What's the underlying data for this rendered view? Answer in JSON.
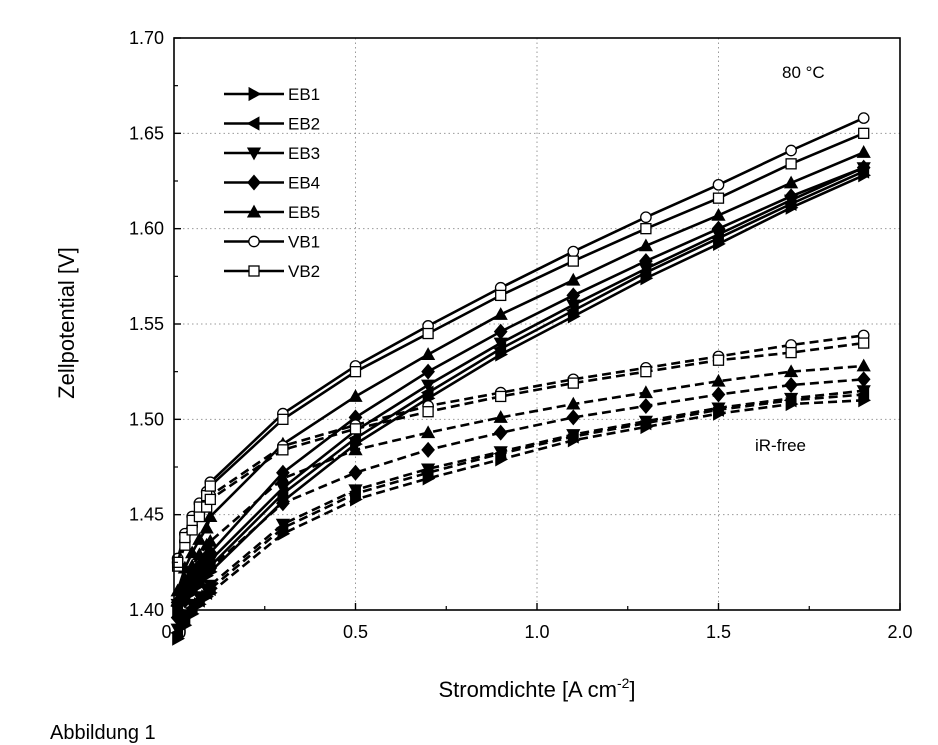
{
  "chart_data": {
    "type": "line",
    "xlabel": "Stromdichte [A cm",
    "xlabel_sup": "-2",
    "xlabel_tail": "]",
    "ylabel": "Zellpotential [V]",
    "xlim": [
      0,
      2.0
    ],
    "ylim": [
      1.4,
      1.7
    ],
    "xticks": [
      0,
      0.5,
      1.0,
      1.5,
      2.0
    ],
    "xtick_labels": [
      "0.0",
      "0.5",
      "1.0",
      "1.5",
      "2.0"
    ],
    "yticks": [
      1.4,
      1.45,
      1.5,
      1.55,
      1.6,
      1.65,
      1.7
    ],
    "ytick_labels": [
      "1.40",
      "1.45",
      "1.50",
      "1.55",
      "1.60",
      "1.65",
      "1.70"
    ],
    "grid": true,
    "legend_position": "top-left",
    "annotations": [
      "80 °C",
      "iR-free"
    ],
    "x": [
      0.01,
      0.03,
      0.05,
      0.07,
      0.09,
      0.1,
      0.3,
      0.5,
      0.7,
      0.9,
      1.1,
      1.3,
      1.5,
      1.7,
      1.9
    ],
    "series": [
      {
        "name": "EB1",
        "marker": "triangle-right",
        "filled": true,
        "values": [
          1.4,
          1.405,
          1.409,
          1.413,
          1.418,
          1.42,
          1.457,
          1.487,
          1.511,
          1.534,
          1.554,
          1.574,
          1.592,
          1.611,
          1.628
        ],
        "ir_free": [
          1.385,
          1.392,
          1.398,
          1.403,
          1.407,
          1.409,
          1.44,
          1.458,
          1.469,
          1.479,
          1.489,
          1.496,
          1.503,
          1.508,
          1.51
        ]
      },
      {
        "name": "EB2",
        "marker": "triangle-left",
        "filled": true,
        "values": [
          1.402,
          1.407,
          1.411,
          1.416,
          1.421,
          1.423,
          1.461,
          1.49,
          1.514,
          1.537,
          1.557,
          1.577,
          1.595,
          1.613,
          1.63
        ],
        "ir_free": [
          1.388,
          1.395,
          1.401,
          1.405,
          1.409,
          1.411,
          1.443,
          1.461,
          1.472,
          1.482,
          1.491,
          1.498,
          1.505,
          1.51,
          1.513
        ]
      },
      {
        "name": "EB3",
        "marker": "triangle-down",
        "filled": true,
        "values": [
          1.403,
          1.409,
          1.414,
          1.419,
          1.424,
          1.426,
          1.464,
          1.494,
          1.518,
          1.54,
          1.56,
          1.579,
          1.597,
          1.615,
          1.632
        ],
        "ir_free": [
          1.39,
          1.397,
          1.403,
          1.407,
          1.411,
          1.413,
          1.445,
          1.463,
          1.474,
          1.483,
          1.492,
          1.499,
          1.506,
          1.511,
          1.515
        ]
      },
      {
        "name": "EB4",
        "marker": "diamond",
        "filled": true,
        "values": [
          1.404,
          1.412,
          1.418,
          1.423,
          1.428,
          1.43,
          1.472,
          1.501,
          1.525,
          1.546,
          1.565,
          1.583,
          1.6,
          1.617,
          1.632
        ],
        "ir_free": [
          1.396,
          1.405,
          1.411,
          1.416,
          1.42,
          1.422,
          1.456,
          1.472,
          1.484,
          1.493,
          1.501,
          1.507,
          1.513,
          1.518,
          1.521
        ]
      },
      {
        "name": "EB5",
        "marker": "triangle-up",
        "filled": true,
        "values": [
          1.41,
          1.422,
          1.43,
          1.437,
          1.443,
          1.449,
          1.487,
          1.512,
          1.534,
          1.555,
          1.573,
          1.591,
          1.607,
          1.624,
          1.64
        ],
        "ir_free": [
          1.405,
          1.416,
          1.423,
          1.429,
          1.434,
          1.436,
          1.469,
          1.484,
          1.493,
          1.501,
          1.508,
          1.514,
          1.52,
          1.525,
          1.528
        ]
      },
      {
        "name": "VB1",
        "marker": "circle",
        "filled": false,
        "values": [
          1.427,
          1.44,
          1.449,
          1.456,
          1.462,
          1.467,
          1.503,
          1.528,
          1.549,
          1.569,
          1.588,
          1.606,
          1.623,
          1.641,
          1.658
        ],
        "ir_free": [
          1.425,
          1.436,
          1.444,
          1.451,
          1.456,
          1.46,
          1.486,
          1.497,
          1.507,
          1.514,
          1.521,
          1.527,
          1.533,
          1.539,
          1.544
        ]
      },
      {
        "name": "VB2",
        "marker": "square",
        "filled": false,
        "values": [
          1.425,
          1.438,
          1.447,
          1.454,
          1.46,
          1.465,
          1.5,
          1.525,
          1.545,
          1.565,
          1.583,
          1.6,
          1.616,
          1.634,
          1.65
        ],
        "ir_free": [
          1.423,
          1.434,
          1.442,
          1.449,
          1.454,
          1.458,
          1.484,
          1.495,
          1.504,
          1.512,
          1.519,
          1.525,
          1.531,
          1.535,
          1.54
        ]
      }
    ]
  },
  "caption": "Abbildung 1"
}
